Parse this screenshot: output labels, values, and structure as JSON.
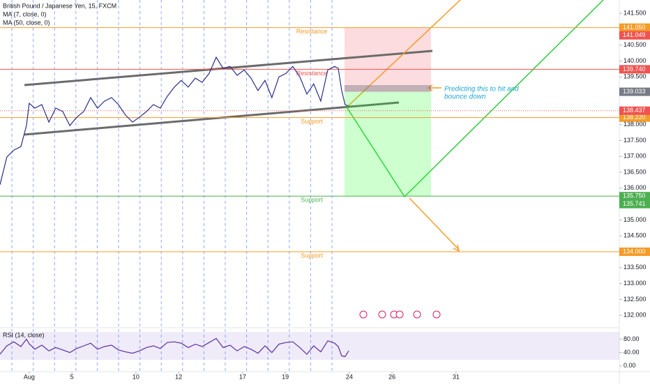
{
  "chart_data": [
    {
      "type": "line",
      "title": "British Pound / Japanese Yen, 15, FXCM",
      "indicators": [
        "MA (7, close, 0)",
        "MA (50, close, 0)"
      ],
      "annotation": [
        "Predicting this to hit and",
        "bounce down"
      ],
      "xlim": [
        -1.37,
        27.65
      ],
      "ylim": [
        131.61,
        141.92
      ],
      "xticks": [
        {
          "value": 0,
          "label": "Aug"
        },
        {
          "value": 2,
          "label": "5"
        },
        {
          "value": 5,
          "label": "10"
        },
        {
          "value": 7,
          "label": "12"
        },
        {
          "value": 10,
          "label": "17"
        },
        {
          "value": 12,
          "label": "19"
        },
        {
          "value": 15,
          "label": "24"
        },
        {
          "value": 17,
          "label": "26"
        },
        {
          "value": 20,
          "label": "31"
        }
      ],
      "yticks": [
        {
          "value": 141.5,
          "label": "141.500"
        },
        {
          "value": 140.5,
          "label": "140.500"
        },
        {
          "value": 140,
          "label": "140.000"
        },
        {
          "value": 139.5,
          "label": "139.500"
        },
        {
          "value": 138,
          "label": "138.000"
        },
        {
          "value": 137.5,
          "label": "137.500"
        },
        {
          "value": 137,
          "label": "137.000"
        },
        {
          "value": 136.5,
          "label": "136.500"
        },
        {
          "value": 136,
          "label": "136.000"
        },
        {
          "value": 135,
          "label": "135.000"
        },
        {
          "value": 134.5,
          "label": "134.500"
        },
        {
          "value": 133.5,
          "label": "133.500"
        },
        {
          "value": 133,
          "label": "133.000"
        },
        {
          "value": 132.5,
          "label": "132.500"
        },
        {
          "value": 132,
          "label": "132.000"
        }
      ],
      "levels": [
        {
          "value": 141.05,
          "label": "141.050",
          "name": "Resistance",
          "color": "#f59b26"
        },
        {
          "value": 139.74,
          "label": "139.740",
          "name": "Resistance",
          "color": "#f05350"
        },
        {
          "value": 138.22,
          "label": "138.220",
          "name": "Support",
          "color": "#f59b26"
        },
        {
          "value": 135.75,
          "label": "135.750",
          "name": "Support",
          "color": "#4caf50"
        },
        {
          "value": 134.0,
          "label": "134.000",
          "name": "Support",
          "color": "#f59b26"
        }
      ],
      "tags": [
        {
          "value": 141.049,
          "label": "141.049",
          "color": "#f05350"
        },
        {
          "value": 139.033,
          "label": "139.033",
          "color": "#787b86"
        },
        {
          "value": 138.437,
          "label": "138.437",
          "color": "#f05350"
        },
        {
          "value": 135.741,
          "label": "135.741",
          "color": "#4caf50"
        }
      ],
      "series": [
        {
          "name": "GBPJPY",
          "color": "#2a2e8c",
          "x": [
            -1.37,
            -1.05,
            -0.72,
            -0.39,
            -0.13,
            0,
            0.26,
            0.59,
            0.92,
            1.24,
            1.57,
            1.9,
            2.22,
            2.55,
            2.88,
            3.2,
            3.53,
            3.86,
            4.18,
            4.51,
            4.84,
            5.16,
            5.49,
            5.82,
            6.14,
            6.47,
            6.8,
            7.12,
            7.45,
            7.78,
            8.1,
            8.43,
            8.76,
            9.08,
            9.41,
            9.74,
            10.07,
            10.39,
            10.72,
            11.05,
            11.37,
            11.7,
            12.03,
            12.35,
            12.68,
            13.01,
            13.33,
            13.66,
            13.99,
            14.31,
            14.48,
            14.64,
            14.8,
            14.97
          ],
          "values": [
            136.11,
            136.98,
            137.2,
            137.31,
            137.97,
            138.67,
            138.52,
            138.63,
            138.08,
            138.52,
            138.41,
            137.97,
            138.23,
            138.41,
            138.85,
            138.52,
            138.74,
            138.85,
            138.63,
            138.3,
            138.08,
            138.23,
            138.41,
            138.63,
            138.52,
            138.89,
            139.18,
            139.39,
            139.18,
            139.46,
            139.33,
            139.61,
            140.12,
            139.77,
            139.83,
            139.55,
            139.72,
            139.46,
            139.07,
            139.39,
            138.85,
            139.5,
            139.61,
            139.83,
            139.5,
            138.96,
            139.28,
            138.74,
            139.72,
            139.83,
            139.77,
            139.07,
            138.63,
            138.58
          ]
        }
      ]
    },
    {
      "type": "line",
      "title": "RSI (14, close)",
      "ylim": [
        -15,
        110
      ],
      "yticks": [
        {
          "value": 80,
          "label": "80.00"
        },
        {
          "value": 40,
          "label": "40.00"
        },
        {
          "value": 0,
          "label": "0.00"
        }
      ],
      "series": [
        {
          "name": "RSI",
          "color": "#5b2fa0",
          "values": [
            35,
            60,
            72,
            58,
            80,
            66,
            50,
            62,
            45,
            55,
            48,
            40,
            52,
            60,
            68,
            50,
            58,
            62,
            48,
            42,
            38,
            45,
            55,
            60,
            52,
            70,
            72,
            68,
            55,
            65,
            58,
            70,
            82,
            55,
            62,
            45,
            58,
            50,
            38,
            60,
            40,
            65,
            70,
            72,
            55,
            35,
            60,
            42,
            75,
            68,
            58,
            30,
            28,
            45
          ]
        }
      ]
    }
  ]
}
